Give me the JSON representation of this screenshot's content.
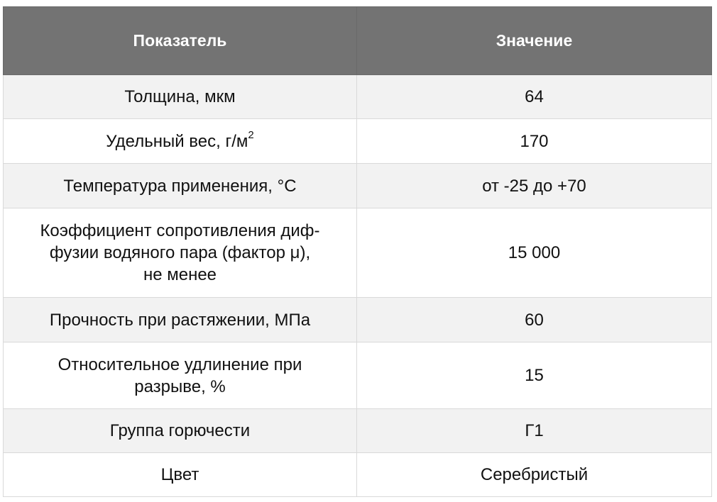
{
  "table": {
    "headers": [
      "Показатель",
      "Значение"
    ],
    "rows": [
      {
        "param": "Толщина, мкм",
        "value": "64"
      },
      {
        "param": "Удельный вес, г/м",
        "param_sup": "2",
        "value": "170"
      },
      {
        "param": "Температура применения, °C",
        "value": "от -25 до +70"
      },
      {
        "param_lines": [
          "Коэффициент сопротивления диф-",
          "фузии водяного пара (фактор μ),",
          "не менее"
        ],
        "value": "15 000"
      },
      {
        "param": "Прочность при растяжении, МПа",
        "value": "60"
      },
      {
        "param_lines": [
          "Относительное удлинение при",
          "разрыве, %"
        ],
        "value": "15"
      },
      {
        "param": "Группа горючести",
        "value": "Г1"
      },
      {
        "param": "Цвет",
        "value": "Серебристый"
      }
    ]
  }
}
